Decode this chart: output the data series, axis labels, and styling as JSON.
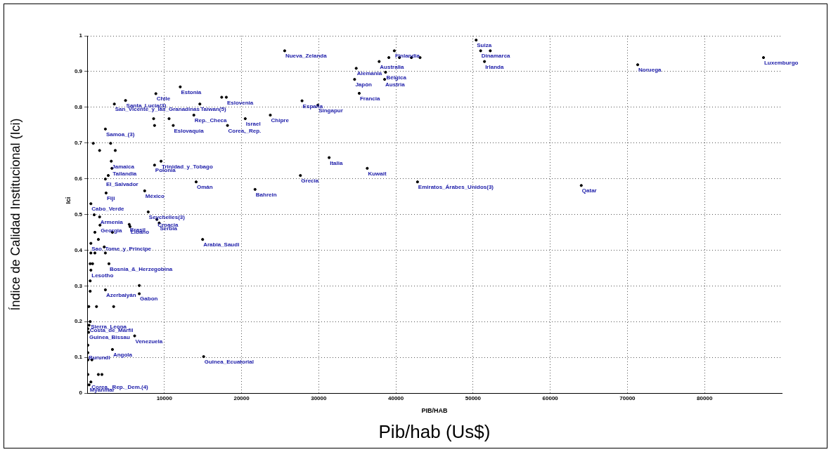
{
  "chart_data": {
    "type": "scatter",
    "xlabel": "Pib/hab (Us$)",
    "ylabel": "Índice de Calidad Institucional (Ici)",
    "annotations": [
      "PIB/HAB",
      "Ici",
      {
        "text": "Estonia",
        "x": 12060,
        "y": 0.857
      },
      {
        "text": "Chile",
        "x": 8900,
        "y": 0.838
      },
      {
        "text": "Santa_Lucia(3)",
        "x": 4970,
        "y": 0.819
      },
      {
        "text": "San_Vicente_y_las_Granadinas",
        "x": 3520,
        "y": 0.809
      },
      {
        "text": "Taiwan(5)",
        "x": 14600,
        "y": 0.809
      },
      {
        "text": "Eslovenia",
        "x": 18030,
        "y": 0.828
      },
      {
        "text": "Rep._Checa",
        "x": 13820,
        "y": 0.778
      },
      {
        "text": "Israel",
        "x": 20480,
        "y": 0.768
      },
      {
        "text": "Chipre",
        "x": 23730,
        "y": 0.778
      },
      {
        "text": "Corea,_Rep.",
        "x": 18180,
        "y": 0.749
      },
      {
        "text": "Eslovaquia",
        "x": 11150,
        "y": 0.749
      },
      {
        "text": "Samoa_(3)",
        "x": 2360,
        "y": 0.739
      },
      {
        "text": "Jamaica",
        "x": 3120,
        "y": 0.649
      },
      {
        "text": "Trinidad_y_Tobago",
        "x": 9570,
        "y": 0.649
      },
      {
        "text": "Polonia",
        "x": 8730,
        "y": 0.638
      },
      {
        "text": "Tailandia",
        "x": 3210,
        "y": 0.629
      },
      {
        "text": "El_Salvador",
        "x": 2360,
        "y": 0.599
      },
      {
        "text": "Omán",
        "x": 14120,
        "y": 0.591
      },
      {
        "text": "Bahrein",
        "x": 21750,
        "y": 0.57
      },
      {
        "text": "Fiji",
        "x": 2450,
        "y": 0.56
      },
      {
        "text": "México",
        "x": 7450,
        "y": 0.566
      },
      {
        "text": "Nueva_Zelanda",
        "x": 25590,
        "y": 0.958
      },
      {
        "text": "Finlandia",
        "x": 39800,
        "y": 0.958
      },
      {
        "text": "Suiza",
        "x": 50400,
        "y": 0.988
      },
      {
        "text": "Dinamarca",
        "x": 50980,
        "y": 0.958
      },
      {
        "text": "Irlanda",
        "x": 51480,
        "y": 0.928
      },
      {
        "text": "Noruega",
        "x": 71330,
        "y": 0.919
      },
      {
        "text": "Luxemburgo",
        "x": 87630,
        "y": 0.939
      },
      {
        "text": "Australia",
        "x": 37830,
        "y": 0.928
      },
      {
        "text": "Alemania",
        "x": 34860,
        "y": 0.909
      },
      {
        "text": "Bélgica",
        "x": 38660,
        "y": 0.898
      },
      {
        "text": "Japón",
        "x": 34650,
        "y": 0.878
      },
      {
        "text": "Austria",
        "x": 38540,
        "y": 0.878
      },
      {
        "text": "Francia",
        "x": 35250,
        "y": 0.839
      },
      {
        "text": "España",
        "x": 27840,
        "y": 0.818
      },
      {
        "text": "Singapur",
        "x": 29890,
        "y": 0.806
      },
      {
        "text": "Italia",
        "x": 31350,
        "y": 0.659
      },
      {
        "text": "Kuwait",
        "x": 36290,
        "y": 0.629
      },
      {
        "text": "Grecia",
        "x": 27630,
        "y": 0.609
      },
      {
        "text": "Emiratos_Árabes_Unidos(3)",
        "x": 42800,
        "y": 0.591
      },
      {
        "text": "Qatar",
        "x": 64020,
        "y": 0.581
      },
      {
        "text": "Arabia_Saudi",
        "x": 14960,
        "y": 0.43
      },
      {
        "text": "Guinea_Ecuatorial",
        "x": 15090,
        "y": 0.102
      },
      {
        "text": "Cabo_Verde",
        "x": 480,
        "y": 0.53
      },
      {
        "text": "Seychelles(3)",
        "x": 7910,
        "y": 0.507
      },
      {
        "text": "Croacia",
        "x": 9030,
        "y": 0.486
      },
      {
        "text": "Serbia",
        "x": 9330,
        "y": 0.476
      },
      {
        "text": "Brasil",
        "x": 5450,
        "y": 0.472
      },
      {
        "text": "Armenia",
        "x": 1610,
        "y": 0.493
      },
      {
        "text": "Georgia",
        "x": 1660,
        "y": 0.47
      },
      {
        "text": "Líbano",
        "x": 5550,
        "y": 0.466
      },
      {
        "text": "Sao_Tome_y_Principe",
        "x": 480,
        "y": 0.419
      },
      {
        "text": "Bosnia_&_Herzegobina",
        "x": 2820,
        "y": 0.362
      },
      {
        "text": "Lesotho",
        "x": 480,
        "y": 0.344
      },
      {
        "text": "Azerbaiyán",
        "x": 2360,
        "y": 0.289
      },
      {
        "text": "Gabon",
        "x": 6750,
        "y": 0.278
      },
      {
        "text": "Sierra_Leona",
        "x": 390,
        "y": 0.2
      },
      {
        "text": "Costa_de_Marfil",
        "x": 240,
        "y": 0.19
      },
      {
        "text": "Guinea_Bissau",
        "x": 180,
        "y": 0.17
      },
      {
        "text": "Venezuela",
        "x": 6150,
        "y": 0.16
      },
      {
        "text": "Angola",
        "x": 3270,
        "y": 0.122
      },
      {
        "text": "Burundi",
        "x": 90,
        "y": 0.113
      },
      {
        "text": "Corea,_Rep._Dem.(4)",
        "x": 480,
        "y": 0.031
      },
      {
        "text": "Myanmar",
        "x": 245,
        "y": 0.023
      }
    ],
    "x": [
      12060,
      8900,
      4970,
      3520,
      14600,
      17430,
      18030,
      13820,
      20480,
      23730,
      18180,
      8610,
      10610,
      8730,
      11150,
      2360,
      790,
      3040,
      1610,
      3640,
      3120,
      9570,
      8730,
      3210,
      2730,
      2360,
      14120,
      21750,
      2450,
      7450,
      25590,
      39800,
      50400,
      50980,
      52230,
      51480,
      71330,
      87630,
      39090,
      40460,
      42010,
      43130,
      37830,
      34860,
      38660,
      34650,
      38540,
      35250,
      27840,
      29890,
      31350,
      36290,
      27630,
      42800,
      64020,
      14960,
      15090,
      480,
      7910,
      9030,
      9330,
      5450,
      1610,
      1660,
      5550,
      480,
      2210,
      2820,
      480,
      6750,
      2360,
      6750,
      3430,
      390,
      240,
      180,
      6150,
      3270,
      90,
      90,
      610,
      480,
      245,
      90,
      1450,
      1910,
      480,
      1000,
      2360,
      390,
      700,
      390,
      390,
      210,
      1210,
      90,
      90,
      910,
      1000,
      3270,
      1450
    ],
    "values": [
      0.857,
      0.838,
      0.819,
      0.809,
      0.809,
      0.828,
      0.828,
      0.778,
      0.768,
      0.778,
      0.749,
      0.768,
      0.768,
      0.749,
      0.749,
      0.739,
      0.699,
      0.699,
      0.679,
      0.679,
      0.649,
      0.649,
      0.638,
      0.629,
      0.609,
      0.599,
      0.591,
      0.57,
      0.56,
      0.566,
      0.958,
      0.958,
      0.988,
      0.958,
      0.958,
      0.928,
      0.919,
      0.939,
      0.939,
      0.939,
      0.939,
      0.939,
      0.928,
      0.909,
      0.898,
      0.878,
      0.878,
      0.839,
      0.818,
      0.806,
      0.659,
      0.629,
      0.609,
      0.591,
      0.581,
      0.43,
      0.102,
      0.53,
      0.507,
      0.486,
      0.476,
      0.472,
      0.493,
      0.47,
      0.466,
      0.419,
      0.409,
      0.362,
      0.344,
      0.301,
      0.289,
      0.278,
      0.242,
      0.2,
      0.19,
      0.17,
      0.16,
      0.122,
      0.113,
      0.093,
      0.093,
      0.031,
      0.023,
      0.052,
      0.052,
      0.052,
      0.392,
      0.392,
      0.392,
      0.362,
      0.362,
      0.314,
      0.285,
      0.242,
      0.242,
      0.18,
      0.134,
      0.499,
      0.45,
      0.45,
      0.43
    ],
    "color": "#000000",
    "marker": "circle",
    "xlim": [
      0,
      90000
    ],
    "xticks": [
      10000,
      20000,
      30000,
      40000,
      50000,
      60000,
      70000,
      80000
    ],
    "ylim": [
      0,
      1
    ],
    "yticks": [
      0,
      0.1,
      0.2,
      0.3,
      0.4,
      0.5,
      0.6,
      0.7,
      0.8,
      0.9,
      1
    ],
    "grid": true,
    "legend": false
  }
}
